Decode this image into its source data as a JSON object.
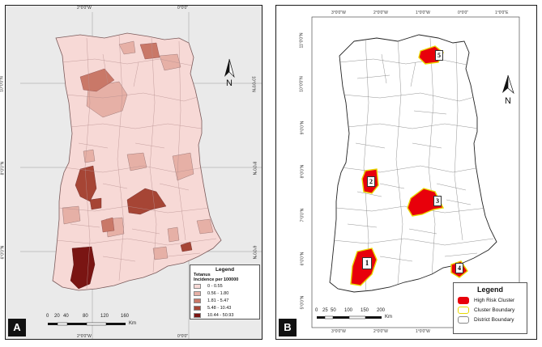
{
  "panel_a": {
    "label": "A",
    "legend_title": "Legend",
    "legend_subtitle1": "Tetanus",
    "legend_subtitle2": "Incidence per 100000",
    "classes": [
      {
        "range": "0 - 0.55",
        "color": "#f7d9d6"
      },
      {
        "range": "0.56 - 1.80",
        "color": "#e6b0a6"
      },
      {
        "range": "1.81 - 5.47",
        "color": "#c97868"
      },
      {
        "range": "5.48 - 10.43",
        "color": "#a64535"
      },
      {
        "range": "10.44 - 50.93",
        "color": "#7a1513"
      }
    ],
    "north_label": "N",
    "scale_labels": [
      "0",
      "20",
      "40",
      "80",
      "120",
      "160"
    ],
    "scale_unit": "Km",
    "lon_labels": [
      "2°0'0\"W",
      "0°0'0\""
    ],
    "lat_labels": [
      "10°0'0\"N",
      "8°0'0\"N",
      "6°0'0\"N"
    ]
  },
  "panel_b": {
    "label": "B",
    "legend_title": "Legend",
    "legend_items": [
      {
        "label": "High Risk Cluster",
        "color": "#e8000b"
      },
      {
        "label": "Cluster Boundary",
        "color": "#e8d800"
      },
      {
        "label": "District Boundary",
        "color": "#888888"
      }
    ],
    "cluster_labels": [
      "1",
      "2",
      "3",
      "4",
      "5"
    ],
    "north_label": "N",
    "scale_labels": [
      "0",
      "25",
      "50",
      "100",
      "150",
      "200"
    ],
    "scale_unit": "Km",
    "lon_labels": [
      "3°0'0\"W",
      "2°0'0\"W",
      "1°0'0\"W",
      "0°0'0\"",
      "1°0'0\"E"
    ],
    "lat_labels": [
      "11°0'0\"N",
      "10°0'0\"N",
      "9°0'0\"N",
      "8°0'0\"N",
      "7°0'0\"N",
      "6°0'0\"N",
      "5°0'0\"N"
    ]
  }
}
